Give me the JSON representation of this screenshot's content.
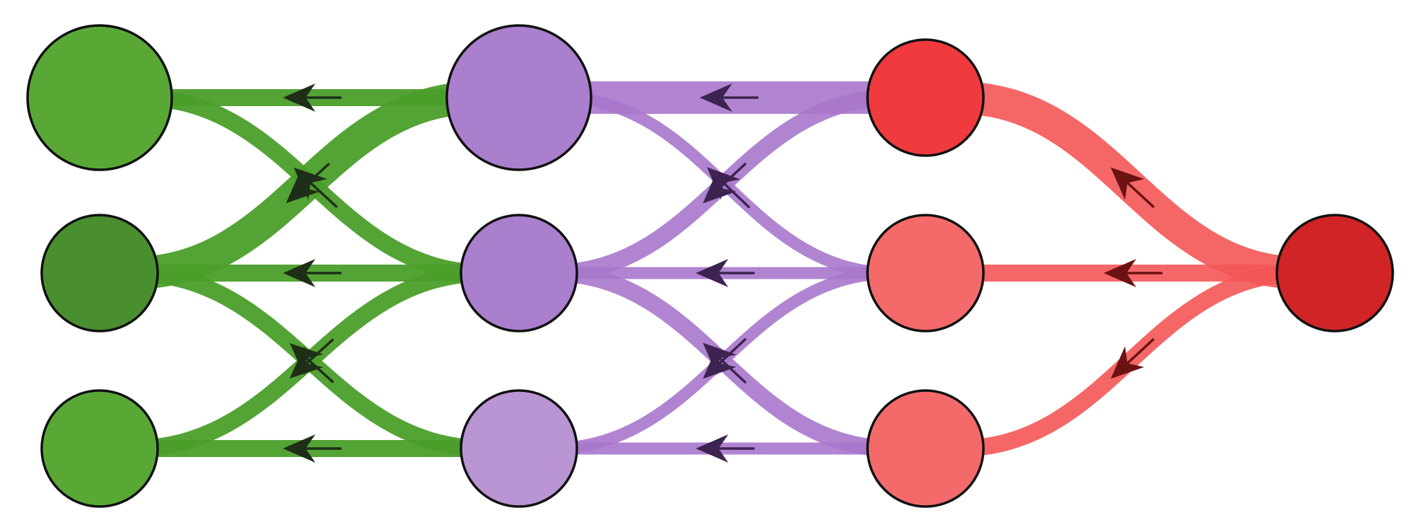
{
  "diagram": {
    "type": "layered-flow-network",
    "direction": "right-to-left",
    "colors": {
      "background": "#ffffff",
      "node_outline": "#111111",
      "green_edge": "#4b9e2a",
      "purple_edge": "#a977cc",
      "red_edge": "#f45656",
      "green_arrow": "#1e2e18",
      "purple_arrow": "#3d2350",
      "red_arrow": "#6b1212"
    },
    "layers": [
      {
        "name": "layer-1",
        "nodes": [
          {
            "id": "g1",
            "size": "large",
            "color": "#59a836"
          },
          {
            "id": "g2",
            "size": "medium",
            "color": "#4a8f2f"
          },
          {
            "id": "g3",
            "size": "medium",
            "color": "#59a836"
          }
        ]
      },
      {
        "name": "layer-2",
        "nodes": [
          {
            "id": "p1",
            "size": "large",
            "color": "#aa7fcd"
          },
          {
            "id": "p2",
            "size": "medium",
            "color": "#aa7fcd"
          },
          {
            "id": "p3",
            "size": "medium",
            "color": "#b995d4"
          }
        ]
      },
      {
        "name": "layer-3",
        "nodes": [
          {
            "id": "r1",
            "size": "medium",
            "color": "#f03a3d"
          },
          {
            "id": "r2",
            "size": "medium",
            "color": "#f46a6a"
          },
          {
            "id": "r3",
            "size": "medium",
            "color": "#f46a6a"
          }
        ]
      },
      {
        "name": "layer-4",
        "nodes": [
          {
            "id": "s",
            "size": "medium",
            "color": "#d02426"
          }
        ]
      }
    ],
    "edges": [
      {
        "from": "s",
        "to": "r1",
        "group": "red",
        "weight": "thick"
      },
      {
        "from": "s",
        "to": "r2",
        "group": "red",
        "weight": "medium"
      },
      {
        "from": "s",
        "to": "r3",
        "group": "red",
        "weight": "medium"
      },
      {
        "from": "r1",
        "to": "p1",
        "group": "purple",
        "weight": "thick"
      },
      {
        "from": "r1",
        "to": "p2",
        "group": "purple",
        "weight": "medium"
      },
      {
        "from": "r2",
        "to": "p1",
        "group": "purple",
        "weight": "thin"
      },
      {
        "from": "r2",
        "to": "p2",
        "group": "purple",
        "weight": "thin"
      },
      {
        "from": "r2",
        "to": "p3",
        "group": "purple",
        "weight": "thin"
      },
      {
        "from": "r3",
        "to": "p2",
        "group": "purple",
        "weight": "medium"
      },
      {
        "from": "r3",
        "to": "p3",
        "group": "purple",
        "weight": "thin"
      },
      {
        "from": "p1",
        "to": "g1",
        "group": "green",
        "weight": "medium"
      },
      {
        "from": "p1",
        "to": "g2",
        "group": "green",
        "weight": "thick"
      },
      {
        "from": "p2",
        "to": "g1",
        "group": "green",
        "weight": "medium"
      },
      {
        "from": "p2",
        "to": "g2",
        "group": "green",
        "weight": "medium"
      },
      {
        "from": "p2",
        "to": "g3",
        "group": "green",
        "weight": "medium"
      },
      {
        "from": "p3",
        "to": "g2",
        "group": "green",
        "weight": "medium"
      },
      {
        "from": "p3",
        "to": "g3",
        "group": "green",
        "weight": "medium"
      }
    ]
  }
}
